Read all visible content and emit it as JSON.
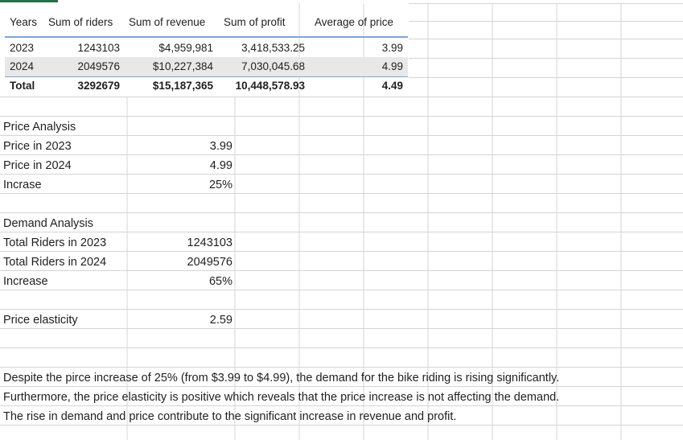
{
  "pivot": {
    "headers": [
      "Years",
      "Sum of riders",
      "Sum of revenue",
      "Sum of profit",
      "Average of price"
    ],
    "rows": [
      {
        "year": "2023",
        "riders": "1243103",
        "revenue": "$4,959,981",
        "profit": "3,418,533.25",
        "price": "3.99"
      },
      {
        "year": "2024",
        "riders": "2049576",
        "revenue": "$10,227,384",
        "profit": "7,030,045.68",
        "price": "4.99"
      }
    ],
    "total": {
      "year": "Total",
      "riders": "3292679",
      "revenue": "$15,187,365",
      "profit": "10,448,578.93",
      "price": "4.49"
    }
  },
  "price_analysis": {
    "title": "Price Analysis",
    "rows": [
      {
        "label": "Price in 2023",
        "value": "3.99"
      },
      {
        "label": "Price in 2024",
        "value": "4.99"
      },
      {
        "label": "Incrase",
        "value": "25%"
      }
    ]
  },
  "demand_analysis": {
    "title": "Demand Analysis",
    "rows": [
      {
        "label": "Total Riders in 2023",
        "value": "1243103"
      },
      {
        "label": "Total Riders in 2024",
        "value": "2049576"
      },
      {
        "label": "Increase",
        "value": "65%"
      }
    ]
  },
  "elasticity": {
    "label": "Price elasticity",
    "value": "2.59"
  },
  "conclusion": [
    "Despite the pirce increase of 25% (from $3.99 to $4.99), the demand for the bike riding is rising significantly.",
    "Furthermore, the price elasticity is positive which reveals that the price increase is not affecting the demand.",
    "The rise in demand and price contribute to the significant increase in revenue and profit."
  ],
  "colors": {
    "gridline": "#d4d4d4",
    "pivot_accent": "#7ea6d7",
    "band": "#e8e8e8",
    "selection": "#217346"
  }
}
